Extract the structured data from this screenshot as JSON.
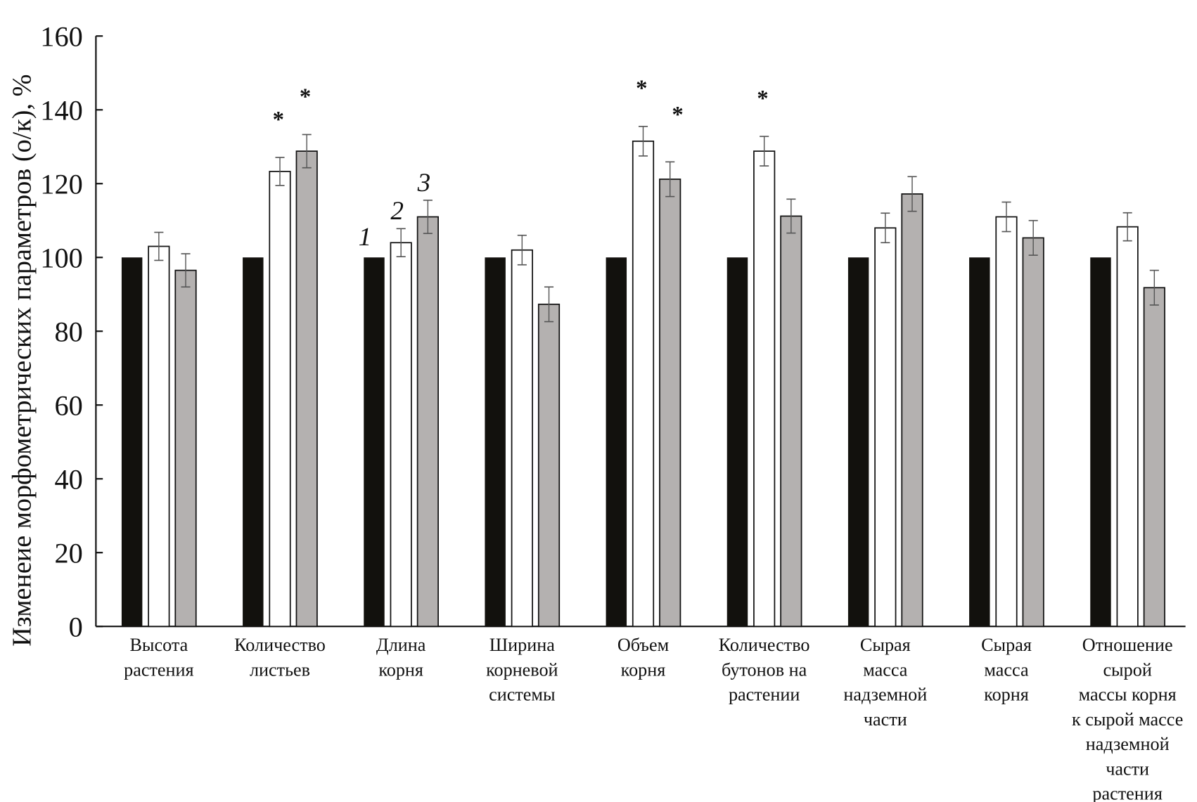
{
  "chart_data": {
    "type": "bar",
    "title": "",
    "ylabel": "Изменеие морфометрических параметров (о/к), %",
    "xlabel": "",
    "ylim": [
      0,
      160
    ],
    "yticks": [
      0,
      20,
      40,
      60,
      80,
      100,
      120,
      140,
      160
    ],
    "grid": false,
    "categories": [
      [
        "Высота",
        "растения"
      ],
      [
        "Количество",
        "листьев"
      ],
      [
        "Длина",
        "корня"
      ],
      [
        "Ширина",
        "корневой",
        "системы"
      ],
      [
        "Объем",
        "корня"
      ],
      [
        "Количество",
        "бутонов на",
        "растении"
      ],
      [
        "Сырая",
        "масса",
        "надземной",
        "части"
      ],
      [
        "Сырая",
        "масса",
        "корня"
      ],
      [
        "Отношение",
        "сырой",
        "массы корня",
        "к сырой массе",
        "надземной",
        "части",
        "растения"
      ]
    ],
    "series": [
      {
        "name": "1",
        "color": "#12110d",
        "values": [
          100,
          100,
          100,
          100,
          100,
          100,
          100,
          100,
          100
        ],
        "errors": null,
        "significant": [
          false,
          false,
          false,
          false,
          false,
          false,
          false,
          false,
          false
        ]
      },
      {
        "name": "2",
        "color": "#ffffff",
        "values": [
          103,
          123.3,
          104,
          102,
          131.5,
          128.8,
          108,
          111,
          108.3
        ],
        "errors": [
          3.8,
          3.8,
          3.8,
          4,
          4,
          4,
          4,
          4,
          3.8
        ],
        "significant": [
          false,
          true,
          false,
          false,
          true,
          true,
          false,
          false,
          false
        ]
      },
      {
        "name": "3",
        "color": "#b4b1b0",
        "values": [
          96.5,
          128.8,
          111,
          87.3,
          121.2,
          111.2,
          117.2,
          105.3,
          91.8
        ],
        "errors": [
          4.5,
          4.5,
          4.5,
          4.7,
          4.7,
          4.6,
          4.7,
          4.7,
          4.7
        ],
        "significant": [
          false,
          true,
          false,
          false,
          true,
          false,
          false,
          false,
          false
        ]
      }
    ],
    "series_labels_group": 2,
    "significance_marker": "*",
    "legend": "inline-numbers"
  }
}
